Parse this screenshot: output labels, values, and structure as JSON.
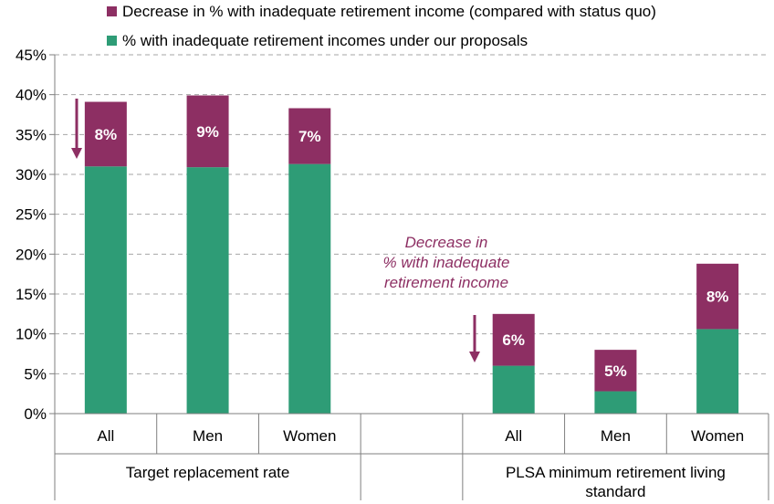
{
  "chart_data": {
    "type": "bar",
    "stacked": true,
    "groups": [
      {
        "label": "Target replacement rate",
        "categories": [
          "All",
          "Men",
          "Women"
        ]
      },
      {
        "label": "PLSA minimum retirement living standard",
        "categories": [
          "All",
          "Men",
          "Women"
        ]
      }
    ],
    "categories": [
      "All",
      "Men",
      "Women",
      "All",
      "Men",
      "Women"
    ],
    "series": [
      {
        "name": "% with inadequate retirement incomes under our proposals",
        "color": "#2e9c76",
        "values": [
          31.0,
          30.9,
          31.3,
          6.0,
          2.8,
          10.6
        ]
      },
      {
        "name": "Decrease in % with inadequate retirement income (compared with status quo)",
        "color": "#8d2f63",
        "values": [
          8.1,
          9.0,
          7.0,
          6.5,
          5.2,
          8.2
        ],
        "data_labels": [
          "8%",
          "9%",
          "7%",
          "6%",
          "5%",
          "8%"
        ]
      }
    ],
    "ylim": [
      0,
      45
    ],
    "yticks": [
      "0%",
      "5%",
      "10%",
      "15%",
      "20%",
      "25%",
      "30%",
      "35%",
      "40%",
      "45%"
    ],
    "grid": true,
    "legend": {
      "position": "top",
      "entries": [
        "Decrease in % with inadequate retirement income (compared with status quo)",
        "% with inadequate retirement incomes under our proposals"
      ]
    },
    "annotation": {
      "lines": [
        "Decrease in",
        "% with inadequate",
        "retirement income"
      ],
      "color": "#8d2f63"
    },
    "arrows": {
      "color": "#8d2f63"
    },
    "title": "",
    "xlabel": "",
    "ylabel": ""
  }
}
